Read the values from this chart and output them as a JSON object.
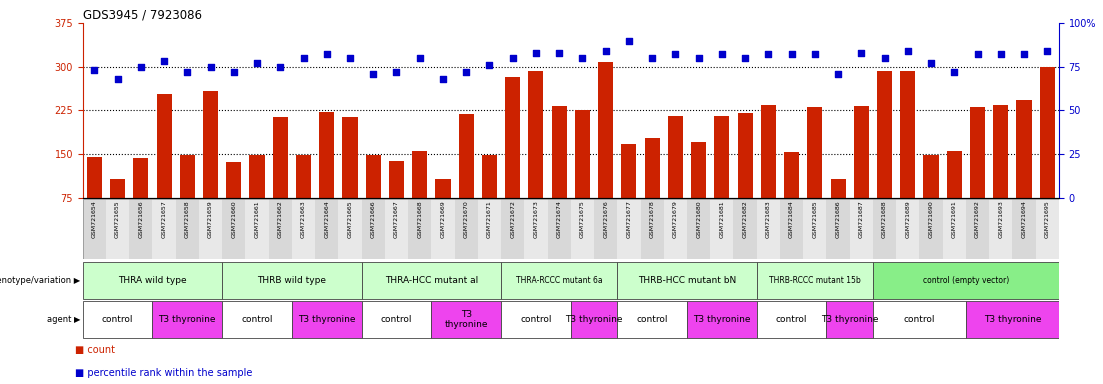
{
  "title": "GDS3945 / 7923086",
  "samples": [
    "GSM721654",
    "GSM721655",
    "GSM721656",
    "GSM721657",
    "GSM721658",
    "GSM721659",
    "GSM721660",
    "GSM721661",
    "GSM721662",
    "GSM721663",
    "GSM721664",
    "GSM721665",
    "GSM721666",
    "GSM721667",
    "GSM721668",
    "GSM721669",
    "GSM721670",
    "GSM721671",
    "GSM721672",
    "GSM721673",
    "GSM721674",
    "GSM721675",
    "GSM721676",
    "GSM721677",
    "GSM721678",
    "GSM721679",
    "GSM721680",
    "GSM721681",
    "GSM721682",
    "GSM721683",
    "GSM721684",
    "GSM721685",
    "GSM721686",
    "GSM721687",
    "GSM721688",
    "GSM721689",
    "GSM721690",
    "GSM721691",
    "GSM721692",
    "GSM721693",
    "GSM721694",
    "GSM721695"
  ],
  "counts": [
    145,
    107,
    143,
    253,
    148,
    258,
    137,
    148,
    213,
    148,
    223,
    213,
    148,
    138,
    155,
    108,
    218,
    148,
    283,
    293,
    233,
    225,
    308,
    168,
    178,
    215,
    170,
    215,
    220,
    235,
    153,
    230,
    108,
    233,
    293,
    293,
    148,
    155,
    230,
    235,
    243,
    300
  ],
  "percentile_ranks": [
    73,
    68,
    75,
    78,
    72,
    75,
    72,
    77,
    75,
    80,
    82,
    80,
    71,
    72,
    80,
    68,
    72,
    76,
    80,
    83,
    83,
    80,
    84,
    90,
    80,
    82,
    80,
    82,
    80,
    82,
    82,
    82,
    71,
    83,
    80,
    84,
    77,
    72,
    82,
    82,
    82,
    84
  ],
  "ylim_left": [
    75,
    375
  ],
  "yticks_left": [
    75,
    150,
    225,
    300,
    375
  ],
  "ylim_right": [
    0,
    100
  ],
  "yticks_right": [
    0,
    25,
    50,
    75,
    100
  ],
  "bar_color": "#CC2200",
  "dot_color": "#0000CC",
  "tick_bg_odd": "#d8d8d8",
  "tick_bg_even": "#e8e8e8",
  "genotype_groups": [
    {
      "label": "THRA wild type",
      "start": 0,
      "end": 5,
      "color": "#ccffcc"
    },
    {
      "label": "THRB wild type",
      "start": 6,
      "end": 11,
      "color": "#ccffcc"
    },
    {
      "label": "THRA-HCC mutant al",
      "start": 12,
      "end": 17,
      "color": "#ccffcc"
    },
    {
      "label": "THRA-RCCC mutant 6a",
      "start": 18,
      "end": 22,
      "color": "#ccffcc"
    },
    {
      "label": "THRB-HCC mutant bN",
      "start": 23,
      "end": 28,
      "color": "#ccffcc"
    },
    {
      "label": "THRB-RCCC mutant 15b",
      "start": 29,
      "end": 33,
      "color": "#ccffcc"
    },
    {
      "label": "control (empty vector)",
      "start": 34,
      "end": 41,
      "color": "#88ee88"
    }
  ],
  "agent_groups": [
    {
      "label": "control",
      "start": 0,
      "end": 2,
      "color": "#ffffff"
    },
    {
      "label": "T3 thyronine",
      "start": 3,
      "end": 5,
      "color": "#ee44ee"
    },
    {
      "label": "control",
      "start": 6,
      "end": 8,
      "color": "#ffffff"
    },
    {
      "label": "T3 thyronine",
      "start": 9,
      "end": 11,
      "color": "#ee44ee"
    },
    {
      "label": "control",
      "start": 12,
      "end": 14,
      "color": "#ffffff"
    },
    {
      "label": "T3\nthyronine",
      "start": 15,
      "end": 17,
      "color": "#ee44ee"
    },
    {
      "label": "control",
      "start": 18,
      "end": 20,
      "color": "#ffffff"
    },
    {
      "label": "T3 thyronine",
      "start": 21,
      "end": 22,
      "color": "#ee44ee"
    },
    {
      "label": "control",
      "start": 23,
      "end": 25,
      "color": "#ffffff"
    },
    {
      "label": "T3 thyronine",
      "start": 26,
      "end": 28,
      "color": "#ee44ee"
    },
    {
      "label": "control",
      "start": 29,
      "end": 31,
      "color": "#ffffff"
    },
    {
      "label": "T3 thyronine",
      "start": 32,
      "end": 33,
      "color": "#ee44ee"
    },
    {
      "label": "control",
      "start": 34,
      "end": 37,
      "color": "#ffffff"
    },
    {
      "label": "T3 thyronine",
      "start": 38,
      "end": 41,
      "color": "#ee44ee"
    }
  ]
}
